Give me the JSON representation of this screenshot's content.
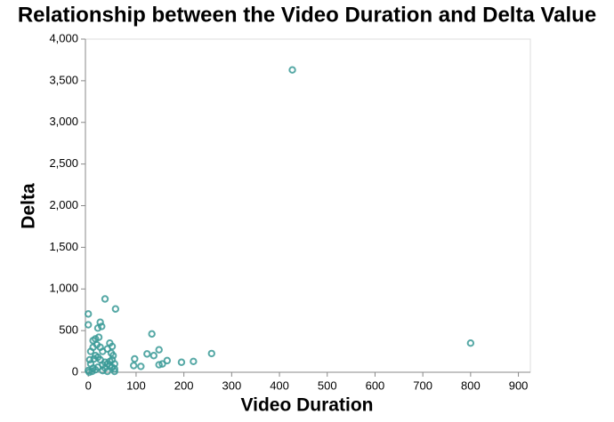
{
  "chart_data": {
    "type": "scatter",
    "title": "Relationship between the Video Duration and Delta Value",
    "x_label": "Video Duration",
    "y_label": "Delta",
    "color": "#3a9a96",
    "x": [
      427,
      800,
      0,
      0,
      35,
      57,
      25,
      28,
      20,
      15,
      10,
      133,
      148,
      123,
      137,
      258,
      220,
      195,
      165,
      155,
      148,
      110,
      97,
      95,
      45,
      50,
      40,
      30,
      10,
      5,
      15,
      20,
      25,
      35,
      40,
      45,
      50,
      55,
      52,
      50,
      5,
      10,
      0,
      2,
      8,
      15,
      20,
      30,
      35,
      40,
      45,
      55,
      55,
      25,
      18,
      12,
      3,
      30,
      48,
      22
    ],
    "values": [
      3630,
      350,
      700,
      570,
      880,
      760,
      600,
      550,
      530,
      400,
      380,
      460,
      270,
      220,
      200,
      225,
      130,
      120,
      140,
      100,
      90,
      70,
      160,
      80,
      350,
      310,
      280,
      250,
      300,
      250,
      200,
      180,
      150,
      120,
      100,
      80,
      60,
      40,
      200,
      150,
      100,
      50,
      20,
      0,
      10,
      30,
      60,
      20,
      50,
      10,
      130,
      100,
      10,
      300,
      330,
      160,
      150,
      90,
      230,
      420
    ],
    "xlim": [
      -6,
      925
    ],
    "ylim": [
      0,
      4000
    ],
    "xticks": [
      0,
      100,
      200,
      300,
      400,
      500,
      600,
      700,
      800,
      900
    ],
    "yticks": [
      0,
      500,
      {
        "value": 1000,
        "label": "1,000"
      },
      {
        "value": 1500,
        "label": "1,500"
      },
      {
        "value": 2000,
        "label": "2,000"
      },
      {
        "value": 2500,
        "label": "2,500"
      },
      {
        "value": 3000,
        "label": "3,000"
      },
      {
        "value": 3500,
        "label": "3,500"
      },
      {
        "value": 4000,
        "label": "4,000"
      }
    ],
    "grid": false
  }
}
